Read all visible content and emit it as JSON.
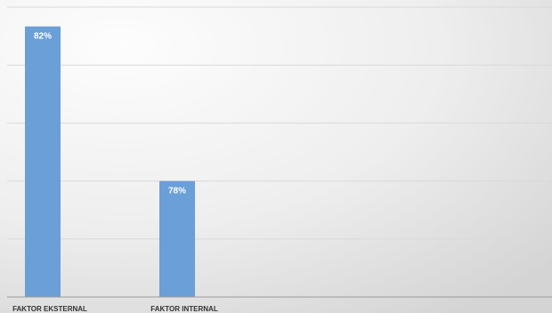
{
  "chart_data": {
    "type": "bar",
    "categories": [
      "FAKTOR EKSTERNAL",
      "FAKTOR INTERNAL"
    ],
    "values": [
      82,
      78
    ],
    "data_labels": [
      "82%",
      "78%"
    ],
    "ylim": [
      75,
      82.5
    ],
    "grid": true,
    "legend": "none",
    "colors": {
      "bar": "#6a9fd8",
      "grid": "#d9d9d9",
      "axis": "#9a9a9a",
      "background_light": "#fdfdfd",
      "background_dark": "#d7d7d7"
    }
  }
}
